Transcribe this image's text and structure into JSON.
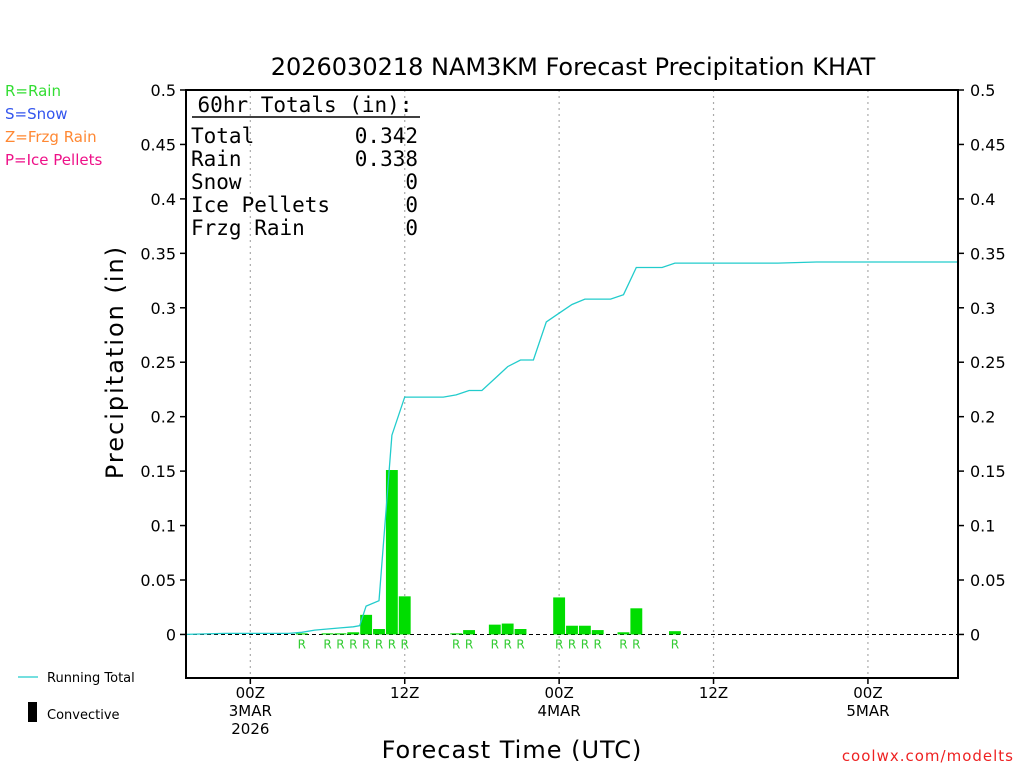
{
  "chart_data": {
    "type": "bar",
    "title": "2026030218 NAM3KM Forecast Precipitation KHAT",
    "xlabel": "Forecast Time (UTC)",
    "ylabel": "Precipitation (in)",
    "ylim": [
      -0.04,
      0.5
    ],
    "yticks": [
      0,
      0.05,
      0.1,
      0.15,
      0.2,
      0.25,
      0.3,
      0.35,
      0.4,
      0.45,
      0.5
    ],
    "ytick_labels": [
      "0",
      "0.05",
      "0.1",
      "0.15",
      "0.2",
      "0.25",
      "0.3",
      "0.35",
      "0.4",
      "0.45",
      "0.5"
    ],
    "xlim_hours": [
      -5,
      55
    ],
    "xticks": [
      {
        "hour": 0,
        "lines": [
          "00Z",
          "3MAR",
          "2026"
        ]
      },
      {
        "hour": 12,
        "lines": [
          "12Z"
        ]
      },
      {
        "hour": 24,
        "lines": [
          "00Z",
          "4MAR"
        ]
      },
      {
        "hour": 36,
        "lines": [
          "12Z"
        ]
      },
      {
        "hour": 48,
        "lines": [
          "00Z",
          "5MAR"
        ]
      }
    ],
    "gridlines_hours": [
      0,
      12,
      24,
      36,
      48
    ],
    "bar_width_hours": 1,
    "bars": [
      {
        "hour": 4,
        "value": 0.001,
        "type": "R"
      },
      {
        "hour": 6,
        "value": 0.001,
        "type": "R"
      },
      {
        "hour": 7,
        "value": 0.001,
        "type": "R"
      },
      {
        "hour": 8,
        "value": 0.002,
        "type": "R"
      },
      {
        "hour": 9,
        "value": 0.018,
        "type": "R"
      },
      {
        "hour": 10,
        "value": 0.005,
        "type": "R"
      },
      {
        "hour": 11,
        "value": 0.151,
        "type": "R"
      },
      {
        "hour": 12,
        "value": 0.035,
        "type": "R"
      },
      {
        "hour": 16,
        "value": 0.001,
        "type": "R"
      },
      {
        "hour": 17,
        "value": 0.004,
        "type": "R"
      },
      {
        "hour": 19,
        "value": 0.009,
        "type": "R"
      },
      {
        "hour": 20,
        "value": 0.01,
        "type": "R"
      },
      {
        "hour": 21,
        "value": 0.005,
        "type": "R"
      },
      {
        "hour": 24,
        "value": 0.034,
        "type": "R"
      },
      {
        "hour": 25,
        "value": 0.008,
        "type": "R"
      },
      {
        "hour": 26,
        "value": 0.008,
        "type": "R"
      },
      {
        "hour": 27,
        "value": 0.004,
        "type": "R"
      },
      {
        "hour": 29,
        "value": 0.002,
        "type": "R"
      },
      {
        "hour": 30,
        "value": 0.024,
        "type": "R"
      },
      {
        "hour": 33,
        "value": 0.003,
        "type": "R"
      }
    ],
    "running_total": {
      "hours": [
        -5,
        -2,
        0,
        1,
        2,
        3,
        4,
        5,
        6,
        7,
        8,
        8.5,
        9,
        10,
        11,
        12,
        13,
        14,
        15,
        16,
        17,
        18,
        19,
        20,
        21,
        22,
        23,
        24,
        25,
        26,
        27,
        28,
        29,
        30,
        31,
        32,
        33,
        35,
        38,
        41,
        44,
        47,
        50,
        53,
        55
      ],
      "values": [
        0,
        0.001,
        0.001,
        0.001,
        0.001,
        0.001,
        0.002,
        0.004,
        0.005,
        0.006,
        0.007,
        0.008,
        0.026,
        0.031,
        0.183,
        0.218,
        0.218,
        0.218,
        0.218,
        0.22,
        0.224,
        0.224,
        0.235,
        0.246,
        0.252,
        0.252,
        0.287,
        0.295,
        0.303,
        0.308,
        0.308,
        0.308,
        0.312,
        0.337,
        0.337,
        0.337,
        0.341,
        0.341,
        0.341,
        0.341,
        0.342,
        0.342,
        0.342,
        0.342,
        0.342
      ]
    },
    "totals_box": {
      "header": "60hr Totals (in):",
      "rows": [
        {
          "label": "Total",
          "value": "0.342"
        },
        {
          "label": "Rain",
          "value": "0.338"
        },
        {
          "label": "Snow",
          "value": "0"
        },
        {
          "label": "Ice Pellets",
          "value": "0"
        },
        {
          "label": "Frzg Rain",
          "value": "0"
        }
      ]
    },
    "type_legend": [
      {
        "text": "R=Rain",
        "color": "#33dd33"
      },
      {
        "text": "S=Snow",
        "color": "#3355ee"
      },
      {
        "text": "Z=Frzg Rain",
        "color": "#ff8833"
      },
      {
        "text": "P=Ice Pellets",
        "color": "#ee1188"
      }
    ],
    "series_legend": [
      {
        "text": "Running Total",
        "color": "#22cccc",
        "symbol": "line"
      },
      {
        "text": "Convective",
        "color": "#000000",
        "symbol": "bar"
      }
    ],
    "watermark": "coolwx.com/modelts"
  },
  "colors": {
    "bar": "#00dd00",
    "running_total": "#22cccc",
    "rain_label": "#33cc33",
    "watermark": "#ee2222",
    "grid": "#aaaaaa"
  }
}
